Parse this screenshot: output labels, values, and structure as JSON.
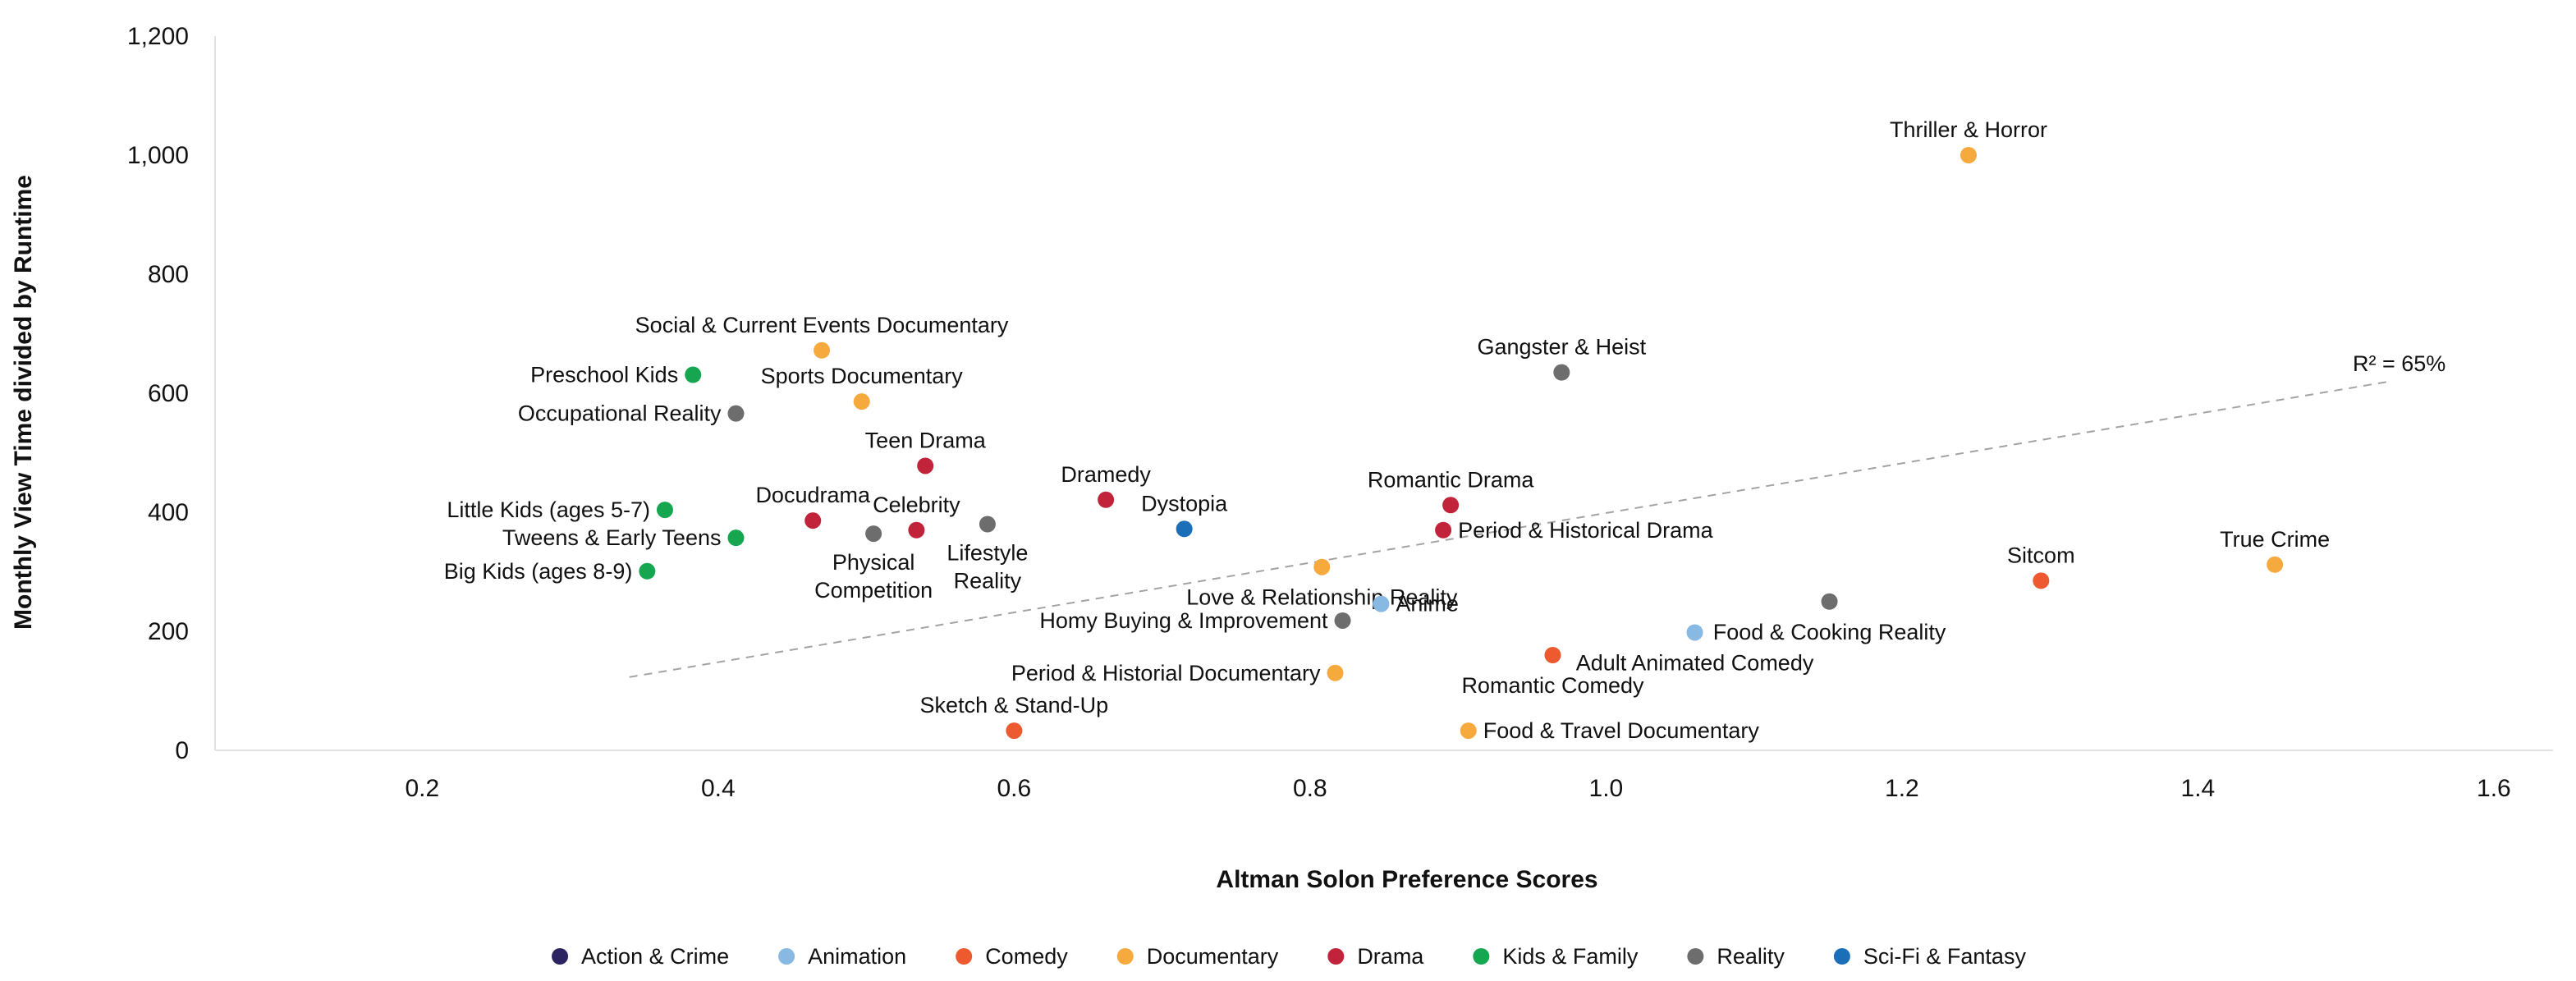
{
  "chart_data": {
    "type": "scatter",
    "title": "",
    "xlabel": "Altman Solon Preference Scores",
    "ylabel": "Monthly View Time divided by Runtime",
    "xlim": [
      0.06,
      1.64
    ],
    "ylim": [
      0,
      1200
    ],
    "x_ticks": [
      0.2,
      0.4,
      0.6,
      0.8,
      1.0,
      1.2,
      1.4,
      1.6
    ],
    "x_tick_labels": [
      "0.2",
      "0.4",
      "0.6",
      "0.8",
      "1.0",
      "1.2",
      "1.4",
      "1.6"
    ],
    "y_ticks": [
      0,
      200,
      400,
      600,
      800,
      1000,
      1200
    ],
    "y_tick_labels": [
      "0",
      "200",
      "400",
      "600",
      "800",
      "1,000",
      "1,200"
    ],
    "grid": false,
    "legend_position": "bottom-center",
    "categories": [
      {
        "name": "Action & Crime",
        "color": "#2b2461"
      },
      {
        "name": "Animation",
        "color": "#87b9e3"
      },
      {
        "name": "Comedy",
        "color": "#ee5a2f"
      },
      {
        "name": "Documentary",
        "color": "#f6aa3d"
      },
      {
        "name": "Drama",
        "color": "#c1243a"
      },
      {
        "name": "Kids & Family",
        "color": "#16a650"
      },
      {
        "name": "Reality",
        "color": "#6d6d6d"
      },
      {
        "name": "Sci-Fi & Fantasy",
        "color": "#1b6fb8"
      }
    ],
    "points": [
      {
        "label": "Thriller & Horror",
        "x": 1.245,
        "y": 1000,
        "category": "Documentary",
        "label_pos": "above"
      },
      {
        "label": "Social & Current Events Documentary",
        "x": 0.47,
        "y": 672,
        "category": "Documentary",
        "label_pos": "above"
      },
      {
        "label": "Preschool Kids",
        "x": 0.383,
        "y": 631,
        "category": "Kids & Family",
        "label_pos": "left"
      },
      {
        "label": "Sports Documentary",
        "x": 0.497,
        "y": 586,
        "category": "Documentary",
        "label_pos": "above"
      },
      {
        "label": "Occupational Reality",
        "x": 0.412,
        "y": 566,
        "category": "Reality",
        "label_pos": "left"
      },
      {
        "label": "Gangster & Heist",
        "x": 0.97,
        "y": 635,
        "category": "Reality",
        "label_pos": "above"
      },
      {
        "label": "Teen Drama",
        "x": 0.54,
        "y": 478,
        "category": "Drama",
        "label_pos": "above"
      },
      {
        "label": "Dramedy",
        "x": 0.662,
        "y": 421,
        "category": "Drama",
        "label_pos": "above"
      },
      {
        "label": "Little Kids (ages 5-7)",
        "x": 0.364,
        "y": 404,
        "category": "Kids & Family",
        "label_pos": "left"
      },
      {
        "label": "Docudrama",
        "x": 0.464,
        "y": 386,
        "category": "Drama",
        "label_pos": "above"
      },
      {
        "label": "Celebrity",
        "x": 0.534,
        "y": 370,
        "category": "Drama",
        "label_pos": "above"
      },
      {
        "label": "Physical Competition",
        "x": 0.505,
        "y": 364,
        "category": "Reality",
        "label_pos": "below2"
      },
      {
        "label": "Lifestyle Reality",
        "x": 0.582,
        "y": 380,
        "category": "Reality",
        "label_pos": "below2"
      },
      {
        "label": "Dystopia",
        "x": 0.715,
        "y": 372,
        "category": "Sci-Fi & Fantasy",
        "label_pos": "above"
      },
      {
        "label": "Tweens & Early Teens",
        "x": 0.412,
        "y": 357,
        "category": "Kids & Family",
        "label_pos": "left"
      },
      {
        "label": "Big Kids (ages 8-9)",
        "x": 0.352,
        "y": 301,
        "category": "Kids & Family",
        "label_pos": "left"
      },
      {
        "label": "Romantic Drama",
        "x": 0.895,
        "y": 412,
        "category": "Drama",
        "label_pos": "above"
      },
      {
        "label": "Period & Historical Drama",
        "x": 0.89,
        "y": 370,
        "category": "Drama",
        "label_pos": "right"
      },
      {
        "label": "Love & Relationship Reality",
        "x": 0.808,
        "y": 308,
        "category": "Documentary",
        "label_pos": "below"
      },
      {
        "label": "Anime",
        "x": 0.848,
        "y": 246,
        "category": "Animation",
        "label_pos": "right"
      },
      {
        "label": "Homy Buying & Improvement",
        "x": 0.822,
        "y": 218,
        "category": "Reality",
        "label_pos": "left"
      },
      {
        "label": "Period & Historial Documentary",
        "x": 0.817,
        "y": 130,
        "category": "Documentary",
        "label_pos": "left"
      },
      {
        "label": "Romantic Comedy",
        "x": 0.964,
        "y": 160,
        "category": "Comedy",
        "label_pos": "below"
      },
      {
        "label": "Adult Animated Comedy",
        "x": 1.06,
        "y": 198,
        "category": "Animation",
        "label_pos": "below"
      },
      {
        "label": "Food & Cooking Reality",
        "x": 1.151,
        "y": 250,
        "category": "Reality",
        "label_pos": "below"
      },
      {
        "label": "Sitcom",
        "x": 1.294,
        "y": 285,
        "category": "Comedy",
        "label_pos": "above"
      },
      {
        "label": "True Crime",
        "x": 1.452,
        "y": 312,
        "category": "Documentary",
        "label_pos": "above"
      },
      {
        "label": "Sketch & Stand-Up",
        "x": 0.6,
        "y": 33,
        "category": "Comedy",
        "label_pos": "above"
      },
      {
        "label": "Food & Travel Documentary",
        "x": 0.907,
        "y": 33,
        "category": "Documentary",
        "label_pos": "right"
      }
    ],
    "trendline": {
      "x": [
        0.34,
        1.53
      ],
      "y": [
        123,
        620
      ],
      "style": "dashed",
      "color": "#999999"
    },
    "annotation": "R² = 65%"
  }
}
